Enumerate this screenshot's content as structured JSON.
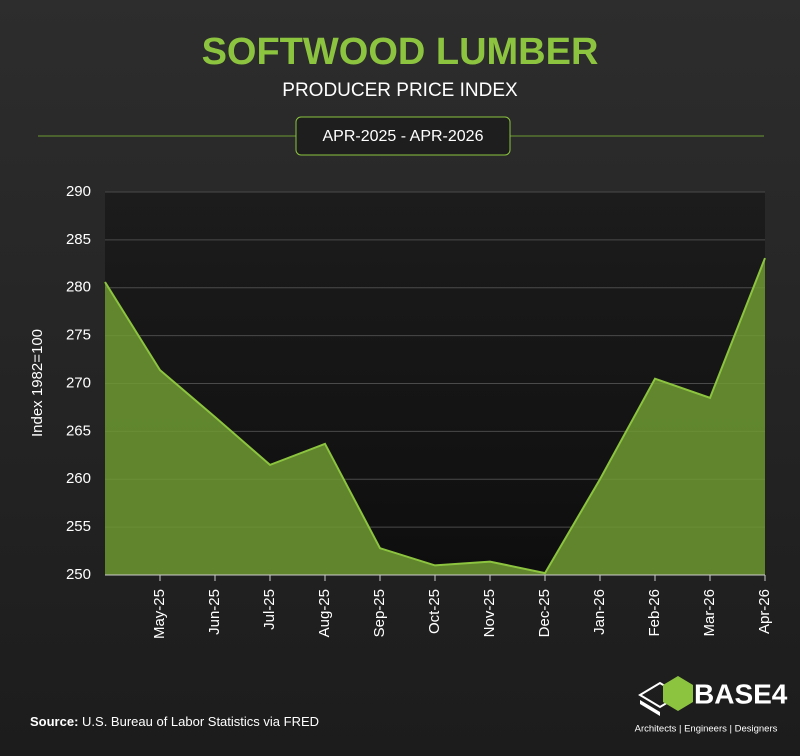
{
  "chart_data": {
    "type": "area",
    "title": "SOFTWOOD LUMBER",
    "subtitle": "PRODUCER PRICE INDEX",
    "date_range": "APR-2025 - APR-2026",
    "y_label": "Index 1982=100",
    "categories": [
      null,
      "May-25",
      "Jun-25",
      "Jul-25",
      "Aug-25",
      "Sep-25",
      "Oct-25",
      "Nov-25",
      "Dec-25",
      "Jan-26",
      "Feb-26",
      "Mar-26",
      "Apr-26"
    ],
    "values": [
      280.6,
      271.4,
      266.5,
      261.5,
      263.7,
      252.8,
      251.0,
      251.4,
      250.2,
      260.0,
      270.5,
      268.5,
      283.1
    ],
    "color": "#6e9a33",
    "line_color": "#8cc43f",
    "ylim": [
      250,
      290
    ],
    "yticks": [
      250,
      255,
      260,
      265,
      270,
      275,
      280,
      285,
      290
    ],
    "grid": true,
    "source_label": "Source:",
    "source_text": "U.S. Bureau of Labor Statistics via FRED",
    "logo_name": "BASE4",
    "logo_tagline": "Architects | Engineers | Designers"
  }
}
